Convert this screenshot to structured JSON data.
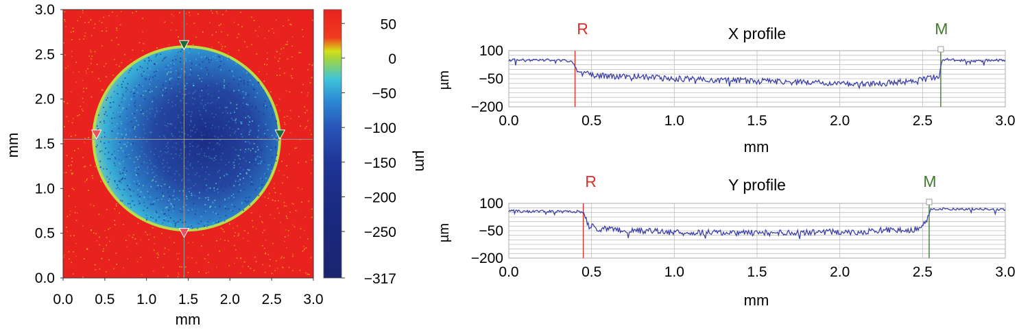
{
  "chart_data": [
    {
      "type": "heatmap",
      "xlabel": "mm",
      "ylabel": "mm",
      "xlim": [
        0,
        3
      ],
      "ylim": [
        0,
        3
      ],
      "x_ticks": [
        "0.0",
        "0.5",
        "1.0",
        "1.5",
        "2.0",
        "2.5",
        "3.0"
      ],
      "y_ticks": [
        "0.0",
        "0.5",
        "1.0",
        "1.5",
        "2.0",
        "2.5",
        "3.0"
      ],
      "crater": {
        "center_mm": [
          1.48,
          1.56
        ],
        "radius_x_mm": 1.1,
        "radius_y_mm": 1.01
      },
      "crosshair_mm": {
        "x": 1.45,
        "y": 1.55
      },
      "markers": [
        {
          "x": 0.4,
          "y": 1.6,
          "color": "#e8505a"
        },
        {
          "x": 1.45,
          "y": 2.6,
          "color": "#1f6b35"
        },
        {
          "x": 2.6,
          "y": 1.6,
          "color": "#1f6b35"
        },
        {
          "x": 1.45,
          "y": 0.5,
          "color": "#e8505a"
        }
      ],
      "colorbar": {
        "label": "µm",
        "range": [
          -317,
          70
        ],
        "ticks": [
          "50",
          "0",
          "−50",
          "−100",
          "−150",
          "−200",
          "−250",
          "−317"
        ],
        "tick_values": [
          50,
          0,
          -50,
          -100,
          -150,
          -200,
          -250,
          -317
        ],
        "stops": [
          {
            "v": 70,
            "color": "#e8231f"
          },
          {
            "v": 30,
            "color": "#f03a1f"
          },
          {
            "v": 10,
            "color": "#d6e01a"
          },
          {
            "v": 0,
            "color": "#a6d63a"
          },
          {
            "v": -30,
            "color": "#3fc4d9"
          },
          {
            "v": -60,
            "color": "#2c8bd4"
          },
          {
            "v": -100,
            "color": "#2855b8"
          },
          {
            "v": -150,
            "color": "#1e3596"
          },
          {
            "v": -220,
            "color": "#1a2a80"
          },
          {
            "v": -317,
            "color": "#1a2470"
          }
        ]
      }
    },
    {
      "type": "line",
      "title": "X profile",
      "xlabel": "mm",
      "ylabel": "µm",
      "xlim": [
        0,
        3
      ],
      "ylim": [
        -200,
        100
      ],
      "x_ticks": [
        "0.0",
        "0.5",
        "1.0",
        "1.5",
        "2.0",
        "2.5",
        "3.0"
      ],
      "y_ticks": [
        "100",
        "−50",
        "−200"
      ],
      "y_tick_values": [
        100,
        -50,
        -200
      ],
      "cursors": [
        {
          "label": "R",
          "x": 0.4,
          "color": "#d9302c"
        },
        {
          "label": "M",
          "x": 2.61,
          "color": "#3f7a2e"
        }
      ],
      "series": [
        {
          "color": "#3c3fa6",
          "x": [
            0,
            0.1,
            0.2,
            0.3,
            0.38,
            0.4,
            0.42,
            0.5,
            0.6,
            0.7,
            0.8,
            1.0,
            1.2,
            1.4,
            1.6,
            1.8,
            2.0,
            2.1,
            2.2,
            2.3,
            2.4,
            2.5,
            2.58,
            2.6,
            2.62,
            2.7,
            2.8,
            2.9,
            3.0
          ],
          "y": [
            50,
            48,
            50,
            49,
            45,
            20,
            -15,
            -30,
            -35,
            -40,
            -38,
            -50,
            -55,
            -60,
            -65,
            -70,
            -75,
            -78,
            -78,
            -72,
            -65,
            -55,
            -40,
            -30,
            55,
            50,
            45,
            48,
            50
          ]
        }
      ]
    },
    {
      "type": "line",
      "title": "Y profile",
      "xlabel": "mm",
      "ylabel": "µm",
      "xlim": [
        0,
        3
      ],
      "ylim": [
        -200,
        100
      ],
      "x_ticks": [
        "0.0",
        "0.5",
        "1.0",
        "1.5",
        "2.0",
        "2.5",
        "3.0"
      ],
      "y_ticks": [
        "100",
        "−50",
        "−200"
      ],
      "y_tick_values": [
        100,
        -50,
        -200
      ],
      "cursors": [
        {
          "label": "R",
          "x": 0.45,
          "color": "#d9302c"
        },
        {
          "label": "M",
          "x": 2.54,
          "color": "#3f7a2e"
        }
      ],
      "series": [
        {
          "color": "#3c3fa6",
          "x": [
            0,
            0.1,
            0.2,
            0.3,
            0.42,
            0.45,
            0.48,
            0.55,
            0.65,
            0.8,
            1.0,
            1.2,
            1.4,
            1.6,
            1.8,
            2.0,
            2.1,
            2.2,
            2.3,
            2.4,
            2.48,
            2.52,
            2.55,
            2.6,
            2.8,
            3.0
          ],
          "y": [
            60,
            55,
            58,
            55,
            55,
            50,
            -20,
            -40,
            -45,
            -50,
            -60,
            -60,
            -62,
            -62,
            -60,
            -55,
            -60,
            -50,
            -45,
            -50,
            -40,
            0,
            65,
            70,
            68,
            65
          ]
        }
      ]
    }
  ]
}
